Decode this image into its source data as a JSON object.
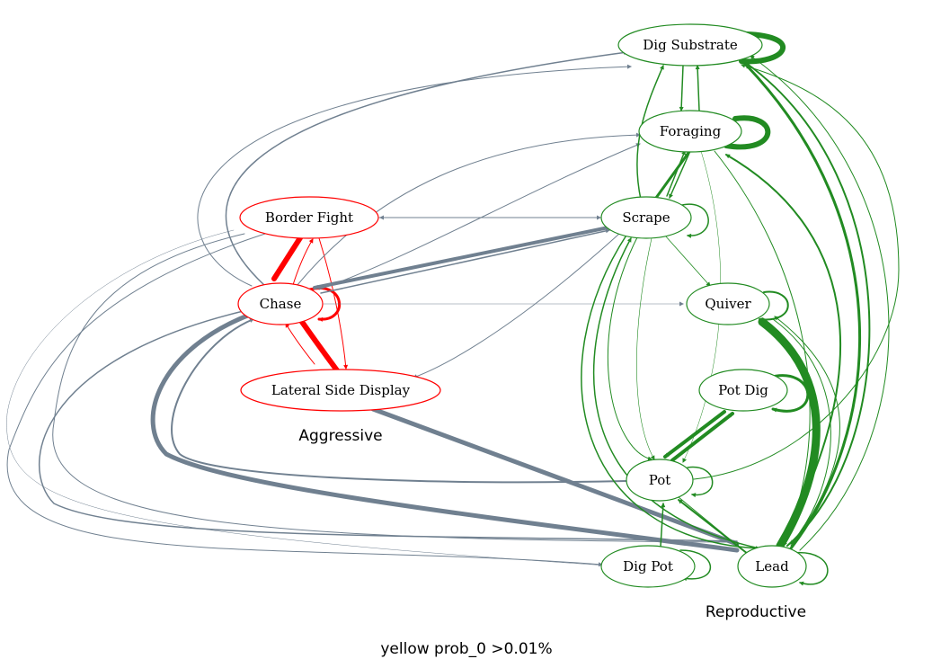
{
  "colors": {
    "aggressive": "#ff0000",
    "reproductive": "#228b22",
    "cross": "#708090",
    "background": "#ffffff"
  },
  "nodes": [
    {
      "id": "dig_substrate",
      "label": "Dig Substrate",
      "group": "reproductive"
    },
    {
      "id": "foraging",
      "label": "Foraging",
      "group": "reproductive"
    },
    {
      "id": "scrape",
      "label": "Scrape",
      "group": "reproductive"
    },
    {
      "id": "quiver",
      "label": "Quiver",
      "group": "reproductive"
    },
    {
      "id": "pot_dig",
      "label": "Pot Dig",
      "group": "reproductive"
    },
    {
      "id": "pot",
      "label": "Pot",
      "group": "reproductive"
    },
    {
      "id": "dig_pot",
      "label": "Dig Pot",
      "group": "reproductive"
    },
    {
      "id": "lead",
      "label": "Lead",
      "group": "reproductive"
    },
    {
      "id": "border_fight",
      "label": "Border Fight",
      "group": "aggressive"
    },
    {
      "id": "chase",
      "label": "Chase",
      "group": "aggressive"
    },
    {
      "id": "lateral_side_display",
      "label": "Lateral Side Display",
      "group": "aggressive"
    }
  ],
  "groups": {
    "aggressive": "Aggressive",
    "reproductive": "Reproductive"
  },
  "caption": "yellow  prob_0 >0.01%"
}
